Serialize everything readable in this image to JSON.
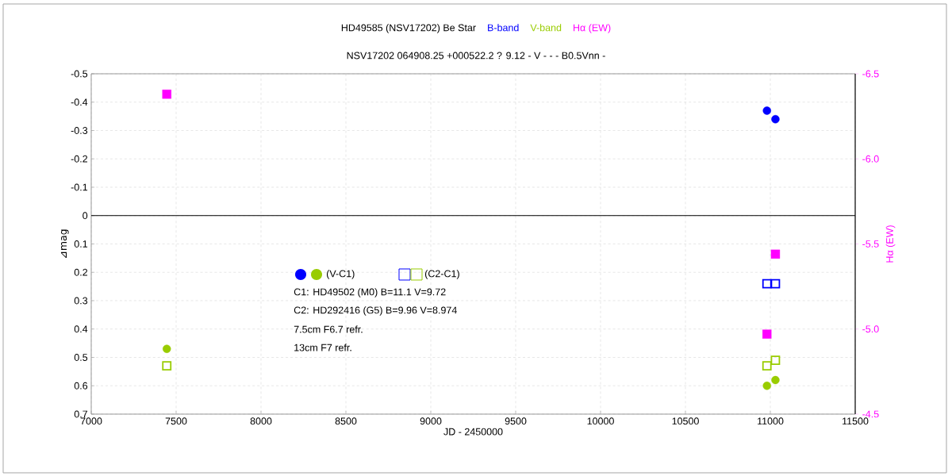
{
  "chart_data": {
    "type": "scatter",
    "title": "HD49585 (NSV17202)    Be Star",
    "subtitle": "NSV17202 064908.25 +000522.2 ? 9.12 - V - - - B0.5Vnn -",
    "xlabel": "JD - 2450000",
    "ylabel": "⊿mag",
    "y2label": "Hα (EW)",
    "xlim": [
      7000,
      11500
    ],
    "xticks": [
      7000,
      7500,
      8000,
      8500,
      9000,
      9500,
      10000,
      10500,
      11000,
      11500
    ],
    "ylim": [
      0.7,
      -0.5
    ],
    "yticks": [
      -0.5,
      -0.4,
      -0.3,
      -0.2,
      -0.1,
      0,
      0.1,
      0.2,
      0.3,
      0.4,
      0.5,
      0.6,
      0.7
    ],
    "y2lim": [
      -4.5,
      -6.5
    ],
    "y2ticks": [
      {
        "value": -6.5,
        "label": "-6.5"
      },
      {
        "value": -6,
        "label": "-6.0"
      },
      {
        "value": -5.5,
        "label": "-5.5"
      },
      {
        "value": -5,
        "label": "-5.0"
      },
      {
        "value": -4.5,
        "label": "-4.5"
      }
    ],
    "grid": true,
    "legend": "top",
    "ref_lines": [
      {
        "axis": "y",
        "value": 0,
        "color": "#000000"
      }
    ],
    "annotations": [
      "(V-C1)",
      "(C2-C1)",
      "C1: HD49502 (M0)   B=11.1   V=9.72",
      "C2: HD292416 (G5)  B=9.96   V=8.974",
      "7.5cm   F6.7   refr.",
      "13cm   F7   refr."
    ],
    "series": [
      {
        "name": "B-band",
        "color": "#0000ff",
        "marker": "circle",
        "x": [
          10980,
          11030
        ],
        "values": [
          -0.37,
          -0.34
        ]
      },
      {
        "name": "V-band",
        "color": "#99cc00",
        "marker": "circle",
        "x": [
          7445,
          10980,
          11030
        ],
        "values": [
          0.47,
          0.6,
          0.58
        ]
      },
      {
        "color": "#0000ff",
        "marker": "square",
        "x": [
          10980,
          11030
        ],
        "values": [
          0.24,
          0.24
        ]
      },
      {
        "color": "#99cc00",
        "marker": "square",
        "x": [
          7445,
          10980,
          11030
        ],
        "values": [
          0.53,
          0.53,
          0.51
        ]
      },
      {
        "name": "Hα (EW)",
        "color": "#ff00ff",
        "marker": "square",
        "axis": "y2",
        "x": [
          7445,
          11030,
          10980
        ],
        "values": [
          -6.38,
          -5.44,
          -4.97
        ]
      }
    ]
  }
}
